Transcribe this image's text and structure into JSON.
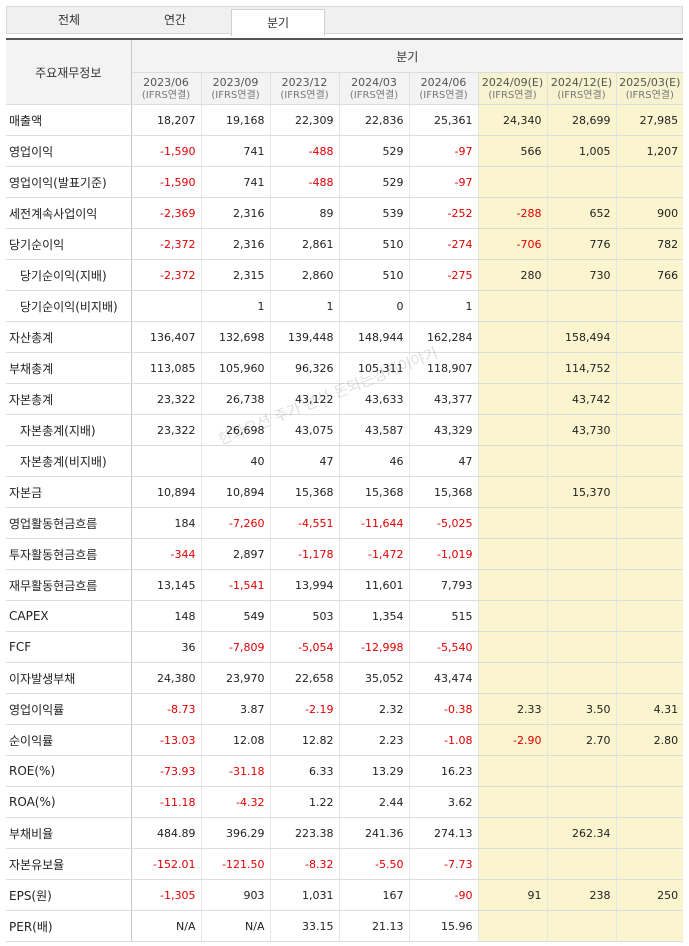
{
  "tabs": [
    {
      "label": "전체",
      "active": false
    },
    {
      "label": "연간",
      "active": false
    },
    {
      "label": "분기",
      "active": true
    }
  ],
  "table": {
    "corner_label": "주요재무정보",
    "group_label": "분기",
    "periods": [
      {
        "label": "2023/06",
        "sub": "(IFRS연결)",
        "estimate": false
      },
      {
        "label": "2023/09",
        "sub": "(IFRS연결)",
        "estimate": false
      },
      {
        "label": "2023/12",
        "sub": "(IFRS연결)",
        "estimate": false
      },
      {
        "label": "2024/03",
        "sub": "(IFRS연결)",
        "estimate": false
      },
      {
        "label": "2024/06",
        "sub": "(IFRS연결)",
        "estimate": false
      },
      {
        "label": "2024/09(E)",
        "sub": "(IFRS연결)",
        "estimate": true
      },
      {
        "label": "2024/12(E)",
        "sub": "(IFRS연결)",
        "estimate": true
      },
      {
        "label": "2025/03(E)",
        "sub": "(IFRS연결)",
        "estimate": true
      }
    ],
    "rows": [
      {
        "label": "매출액",
        "indent": false,
        "values": [
          "18,207",
          "19,168",
          "22,309",
          "22,836",
          "25,361",
          "24,340",
          "28,699",
          "27,985"
        ]
      },
      {
        "label": "영업이익",
        "indent": false,
        "values": [
          "-1,590",
          "741",
          "-488",
          "529",
          "-97",
          "566",
          "1,005",
          "1,207"
        ]
      },
      {
        "label": "영업이익(발표기준)",
        "indent": false,
        "values": [
          "-1,590",
          "741",
          "-488",
          "529",
          "-97",
          "",
          "",
          ""
        ]
      },
      {
        "label": "세전계속사업이익",
        "indent": false,
        "values": [
          "-2,369",
          "2,316",
          "89",
          "539",
          "-252",
          "-288",
          "652",
          "900"
        ]
      },
      {
        "label": "당기순이익",
        "indent": false,
        "values": [
          "-2,372",
          "2,316",
          "2,861",
          "510",
          "-274",
          "-706",
          "776",
          "782"
        ]
      },
      {
        "label": "당기순이익(지배)",
        "indent": true,
        "values": [
          "-2,372",
          "2,315",
          "2,860",
          "510",
          "-275",
          "280",
          "730",
          "766"
        ]
      },
      {
        "label": "당기순이익(비지배)",
        "indent": true,
        "values": [
          "",
          "1",
          "1",
          "0",
          "1",
          "",
          "",
          ""
        ]
      },
      {
        "label": "자산총계",
        "indent": false,
        "values": [
          "136,407",
          "132,698",
          "139,448",
          "148,944",
          "162,284",
          "",
          "158,494",
          ""
        ]
      },
      {
        "label": "부채총계",
        "indent": false,
        "values": [
          "113,085",
          "105,960",
          "96,326",
          "105,311",
          "118,907",
          "",
          "114,752",
          ""
        ]
      },
      {
        "label": "자본총계",
        "indent": false,
        "values": [
          "23,322",
          "26,738",
          "43,122",
          "43,633",
          "43,377",
          "",
          "43,742",
          ""
        ]
      },
      {
        "label": "자본총계(지배)",
        "indent": true,
        "values": [
          "23,322",
          "26,698",
          "43,075",
          "43,587",
          "43,329",
          "",
          "43,730",
          ""
        ]
      },
      {
        "label": "자본총계(비지배)",
        "indent": true,
        "values": [
          "",
          "40",
          "47",
          "46",
          "47",
          "",
          "",
          ""
        ]
      },
      {
        "label": "자본금",
        "indent": false,
        "values": [
          "10,894",
          "10,894",
          "15,368",
          "15,368",
          "15,368",
          "",
          "15,370",
          ""
        ]
      },
      {
        "label": "영업활동현금흐름",
        "indent": false,
        "values": [
          "184",
          "-7,260",
          "-4,551",
          "-11,644",
          "-5,025",
          "",
          "",
          ""
        ]
      },
      {
        "label": "투자활동현금흐름",
        "indent": false,
        "values": [
          "-344",
          "2,897",
          "-1,178",
          "-1,472",
          "-1,019",
          "",
          "",
          ""
        ]
      },
      {
        "label": "재무활동현금흐름",
        "indent": false,
        "values": [
          "13,145",
          "-1,541",
          "13,994",
          "11,601",
          "7,793",
          "",
          "",
          ""
        ]
      },
      {
        "label": "CAPEX",
        "indent": false,
        "values": [
          "148",
          "549",
          "503",
          "1,354",
          "515",
          "",
          "",
          ""
        ]
      },
      {
        "label": "FCF",
        "indent": false,
        "values": [
          "36",
          "-7,809",
          "-5,054",
          "-12,998",
          "-5,540",
          "",
          "",
          ""
        ]
      },
      {
        "label": "이자발생부채",
        "indent": false,
        "values": [
          "24,380",
          "23,970",
          "22,658",
          "35,052",
          "43,474",
          "",
          "",
          ""
        ]
      },
      {
        "label": "영업이익률",
        "indent": false,
        "values": [
          "-8.73",
          "3.87",
          "-2.19",
          "2.32",
          "-0.38",
          "2.33",
          "3.50",
          "4.31"
        ]
      },
      {
        "label": "순이익률",
        "indent": false,
        "values": [
          "-13.03",
          "12.08",
          "12.82",
          "2.23",
          "-1.08",
          "-2.90",
          "2.70",
          "2.80"
        ]
      },
      {
        "label": "ROE(%)",
        "indent": false,
        "values": [
          "-73.93",
          "-31.18",
          "6.33",
          "13.29",
          "16.23",
          "",
          "",
          ""
        ]
      },
      {
        "label": "ROA(%)",
        "indent": false,
        "values": [
          "-11.18",
          "-4.32",
          "1.22",
          "2.44",
          "3.62",
          "",
          "",
          ""
        ]
      },
      {
        "label": "부채비율",
        "indent": false,
        "values": [
          "484.89",
          "396.29",
          "223.38",
          "241.36",
          "274.13",
          "",
          "262.34",
          ""
        ]
      },
      {
        "label": "자본유보율",
        "indent": false,
        "values": [
          "-152.01",
          "-121.50",
          "-8.32",
          "-5.50",
          "-7.73",
          "",
          "",
          ""
        ]
      },
      {
        "label": "EPS(원)",
        "indent": false,
        "values": [
          "-1,305",
          "903",
          "1,031",
          "167",
          "-90",
          "91",
          "238",
          "250"
        ]
      },
      {
        "label": "PER(배)",
        "indent": false,
        "values": [
          "N/A",
          "N/A",
          "33.15",
          "21.13",
          "15.96",
          "",
          "",
          ""
        ]
      }
    ]
  },
  "watermark": "한화오션 주가 분석 돈되는경제이야기"
}
